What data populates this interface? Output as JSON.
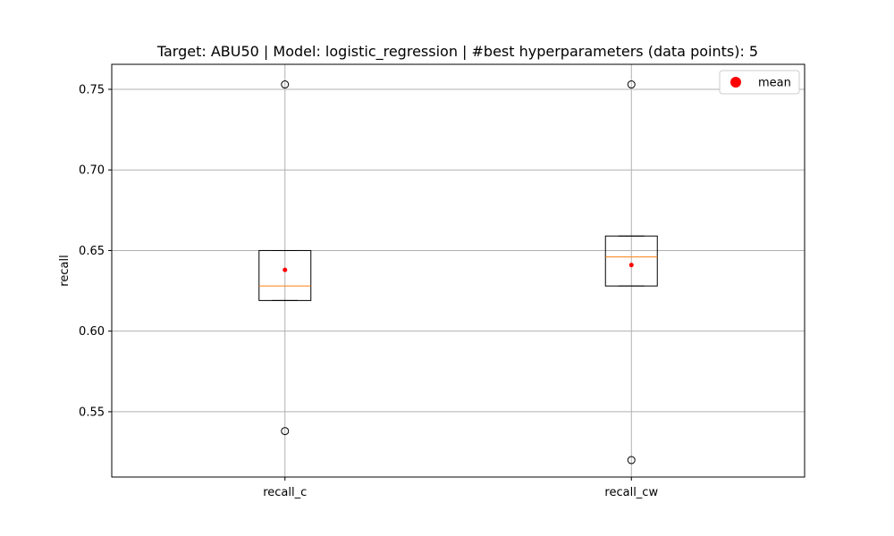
{
  "chart_data": {
    "type": "box",
    "title": "Target: ABU50 | Model: logistic_regression | #best hyperparameters (data points): 5",
    "xlabel": "",
    "ylabel": "recall",
    "categories": [
      "recall_c",
      "recall_cw"
    ],
    "ylim": [
      0.5095,
      0.7655
    ],
    "yticks": [
      0.55,
      0.6,
      0.65,
      0.7,
      0.75
    ],
    "ytick_labels": [
      "0.55",
      "0.60",
      "0.65",
      "0.70",
      "0.75"
    ],
    "grid": true,
    "legend": {
      "placement": "upper right",
      "entries": [
        "mean"
      ]
    },
    "series": [
      {
        "category": "recall_c",
        "whisker_low": 0.619,
        "q1": 0.619,
        "median": 0.628,
        "q3": 0.65,
        "whisker_high": 0.65,
        "mean": 0.638,
        "outliers": [
          0.753,
          0.538
        ]
      },
      {
        "category": "recall_cw",
        "whisker_low": 0.628,
        "q1": 0.628,
        "median": 0.646,
        "q3": 0.659,
        "whisker_high": 0.659,
        "mean": 0.641,
        "outliers": [
          0.753,
          0.52
        ]
      }
    ],
    "colors": {
      "box": "#000000",
      "median": "#ff7f0e",
      "mean": "#ff0000",
      "grid": "#b0b0b0"
    }
  }
}
